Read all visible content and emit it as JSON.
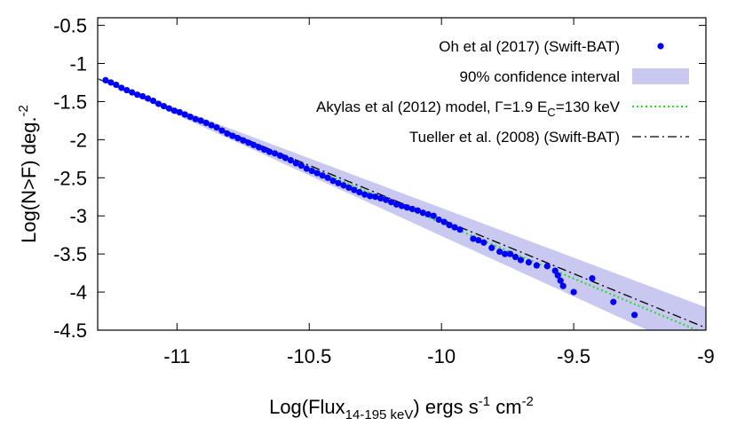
{
  "chart_data": {
    "type": "scatter",
    "xlabel": {
      "main": "Log(Flux",
      "sub": "14-195 keV",
      "rest": ") ergs s",
      "sup1": "-1",
      "rest2": " cm",
      "sup2": "-2"
    },
    "ylabel": {
      "main": "Log(N>F) deg.",
      "sup": "-2"
    },
    "xlim": [
      -11.3,
      -9.0
    ],
    "ylim": [
      -4.5,
      -0.4
    ],
    "x_ticks": [
      -11,
      -10.5,
      -10,
      -9.5,
      -9
    ],
    "x_tick_labels": [
      "-11",
      "-10.5",
      "-10",
      "-9.5",
      "-9"
    ],
    "y_ticks": [
      -0.5,
      -1,
      -1.5,
      -2,
      -2.5,
      -3,
      -3.5,
      -4,
      -4.5
    ],
    "y_tick_labels": [
      "-0.5",
      "-1",
      "-1.5",
      "-2",
      "-2.5",
      "-3",
      "-3.5",
      "-4",
      "-4.5"
    ],
    "grid": false,
    "legend_position": "top-right",
    "legend": [
      {
        "label": "Oh et al (2017)  (Swift-BAT)",
        "kind": "points",
        "color": "#0000ff"
      },
      {
        "label": "90% confidence interval",
        "kind": "band",
        "color": "#c8c8f0"
      },
      {
        "label_parts": [
          "Akylas et al (2012) model, Γ=1.9 E",
          "C",
          "=130 keV"
        ],
        "kind": "dotted",
        "color": "#22dd22"
      },
      {
        "label": "Tueller et al. (2008)  (Swift-BAT)",
        "kind": "dashdot",
        "color": "#000000"
      }
    ],
    "series": [
      {
        "name": "Oh et al (2017)  (Swift-BAT)",
        "x": [
          -11.27,
          -11.25,
          -11.23,
          -11.21,
          -11.19,
          -11.17,
          -11.15,
          -11.13,
          -11.11,
          -11.09,
          -11.07,
          -11.05,
          -11.03,
          -11.01,
          -10.99,
          -10.97,
          -10.95,
          -10.93,
          -10.91,
          -10.89,
          -10.87,
          -10.85,
          -10.83,
          -10.81,
          -10.79,
          -10.77,
          -10.75,
          -10.73,
          -10.71,
          -10.69,
          -10.67,
          -10.65,
          -10.63,
          -10.61,
          -10.59,
          -10.57,
          -10.55,
          -10.53,
          -10.51,
          -10.49,
          -10.47,
          -10.45,
          -10.43,
          -10.41,
          -10.39,
          -10.37,
          -10.35,
          -10.33,
          -10.31,
          -10.29,
          -10.27,
          -10.25,
          -10.23,
          -10.21,
          -10.19,
          -10.17,
          -10.15,
          -10.13,
          -10.11,
          -10.09,
          -10.07,
          -10.05,
          -10.03,
          -10.01,
          -9.99,
          -9.97,
          -9.95,
          -9.93,
          -9.88,
          -9.86,
          -9.84,
          -9.81,
          -9.78,
          -9.76,
          -9.74,
          -9.72,
          -9.7,
          -9.67,
          -9.64,
          -9.6,
          -9.57,
          -9.56,
          -9.55,
          -9.54,
          -9.5,
          -9.43,
          -9.35,
          -9.27
        ],
        "y": [
          -1.22,
          -1.25,
          -1.28,
          -1.32,
          -1.35,
          -1.38,
          -1.41,
          -1.43,
          -1.46,
          -1.49,
          -1.53,
          -1.56,
          -1.59,
          -1.62,
          -1.64,
          -1.67,
          -1.7,
          -1.73,
          -1.75,
          -1.78,
          -1.81,
          -1.84,
          -1.88,
          -1.92,
          -1.95,
          -1.98,
          -2.01,
          -2.04,
          -2.07,
          -2.1,
          -2.13,
          -2.16,
          -2.18,
          -2.21,
          -2.24,
          -2.27,
          -2.31,
          -2.34,
          -2.38,
          -2.41,
          -2.44,
          -2.47,
          -2.5,
          -2.54,
          -2.57,
          -2.6,
          -2.63,
          -2.66,
          -2.69,
          -2.72,
          -2.74,
          -2.75,
          -2.77,
          -2.79,
          -2.82,
          -2.85,
          -2.87,
          -2.89,
          -2.91,
          -2.93,
          -2.96,
          -2.98,
          -3.0,
          -3.05,
          -3.08,
          -3.12,
          -3.15,
          -3.18,
          -3.3,
          -3.32,
          -3.35,
          -3.42,
          -3.47,
          -3.5,
          -3.5,
          -3.54,
          -3.58,
          -3.61,
          -3.65,
          -3.66,
          -3.72,
          -3.78,
          -3.85,
          -3.92,
          -4.0,
          -3.82,
          -4.13,
          -4.3
        ]
      },
      {
        "name": "Akylas et al (2012) model, Γ=1.9 EC=130 keV",
        "x": [
          -11.3,
          -9.0
        ],
        "y": [
          -1.2,
          -4.55
        ]
      },
      {
        "name": "Tueller et al. (2008)  (Swift-BAT)",
        "x": [
          -11.3,
          -9.0
        ],
        "y": [
          -1.2,
          -4.47
        ]
      },
      {
        "name": "90% confidence interval",
        "x": [
          -11.3,
          -9.0
        ],
        "upper": [
          -1.2,
          -4.2
        ],
        "lower": [
          -1.2,
          -4.85
        ]
      }
    ]
  }
}
